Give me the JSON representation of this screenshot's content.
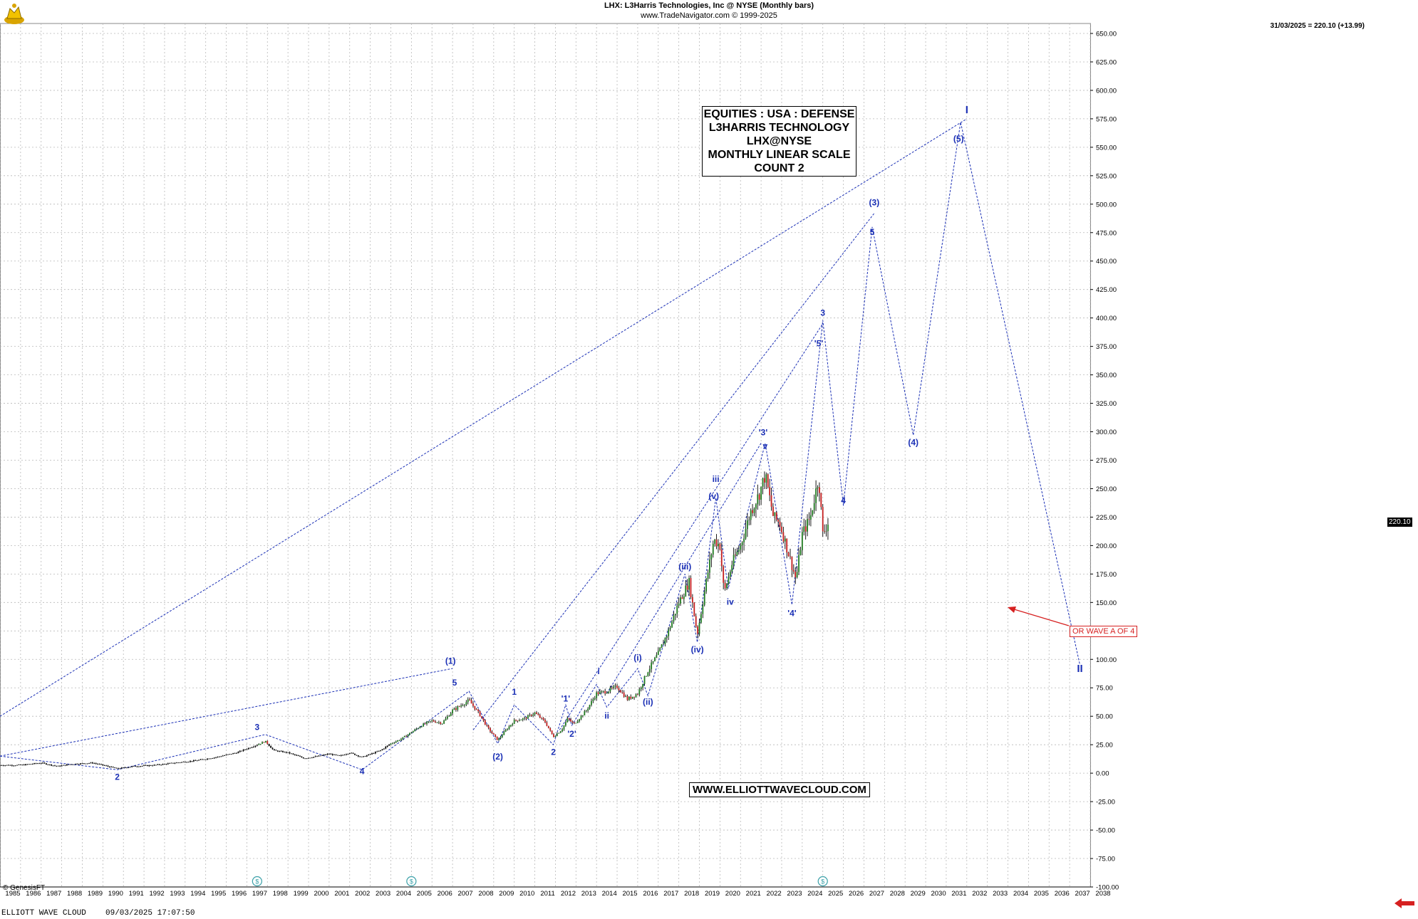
{
  "header": {
    "title": "LHX:  L3Harris Technologies, Inc @ NYSE  (Monthly bars)",
    "subtitle": "www.TradeNavigator.com © 1999-2025",
    "last_price": "31/03/2025 = 220.10 (+13.99)",
    "price_tag": "220.10"
  },
  "infobox": {
    "lines": [
      "EQUITIES : USA : DEFENSE",
      "L3HARRIS TECHNOLOGY",
      "LHX@NYSE",
      "MONTHLY LINEAR SCALE",
      "COUNT 2"
    ]
  },
  "website": "WWW.ELLIOTTWAVECLOUD.COM",
  "alt_note": "OR WAVE A OF 4",
  "copyright": "© GenesisFT",
  "footer": {
    "brand": "ELLIOTT WAVE CLOUD",
    "timestamp": "09/03/2025 17:07:50"
  },
  "icons": {
    "logo": "bull-logo-icon",
    "scroll": "scroll-right-arrow-icon",
    "split_markers": "split-marker-icon"
  },
  "colors": {
    "wave": "#1a2fb5",
    "price": "#000000",
    "up_candle": "#1f7a1f",
    "down_candle": "#c41e1e",
    "alert": "#d62020",
    "grid": "#b8b8b8"
  },
  "chart_data": {
    "type": "line",
    "title": "LHX:  L3Harris Technologies, Inc @ NYSE  (Monthly bars)",
    "xlabel": "",
    "ylabel": "",
    "x_range": [
      1985.0,
      2038.0
    ],
    "ylim": [
      -100,
      650
    ],
    "y_ticks": [
      -100,
      -75,
      -50,
      -25,
      0,
      25,
      50,
      75,
      100,
      125,
      150,
      175,
      200,
      225,
      250,
      275,
      300,
      325,
      350,
      375,
      400,
      425,
      450,
      475,
      500,
      525,
      550,
      575,
      600,
      625,
      650
    ],
    "x_ticks": [
      1985,
      1986,
      1987,
      1988,
      1989,
      1990,
      1991,
      1992,
      1993,
      1994,
      1995,
      1996,
      1997,
      1998,
      1999,
      2000,
      2001,
      2002,
      2003,
      2004,
      2005,
      2006,
      2007,
      2008,
      2009,
      2010,
      2011,
      2012,
      2013,
      2014,
      2015,
      2016,
      2017,
      2018,
      2019,
      2020,
      2021,
      2022,
      2023,
      2024,
      2025,
      2026,
      2027,
      2028,
      2029,
      2030,
      2031,
      2032,
      2033,
      2034,
      2035,
      2036,
      2037,
      2038
    ],
    "grid": true,
    "split_markers_x": [
      1997.5,
      2005.0,
      2025.0
    ],
    "price_series": {
      "name": "LHX",
      "points": [
        [
          1985.0,
          7
        ],
        [
          1986.0,
          7
        ],
        [
          1987.0,
          9
        ],
        [
          1987.8,
          6
        ],
        [
          1988.5,
          8
        ],
        [
          1989.5,
          9
        ],
        [
          1990.0,
          7
        ],
        [
          1990.7,
          4
        ],
        [
          1991.5,
          6
        ],
        [
          1992.5,
          7
        ],
        [
          1993.5,
          9
        ],
        [
          1994.5,
          11
        ],
        [
          1995.5,
          14
        ],
        [
          1996.5,
          18
        ],
        [
          1997.5,
          25
        ],
        [
          1997.9,
          28
        ],
        [
          1998.3,
          20
        ],
        [
          1999.0,
          18
        ],
        [
          1999.8,
          13
        ],
        [
          2000.5,
          15
        ],
        [
          2001.0,
          17
        ],
        [
          2001.5,
          15
        ],
        [
          2002.0,
          18
        ],
        [
          2002.6,
          14
        ],
        [
          2003.5,
          20
        ],
        [
          2004.0,
          26
        ],
        [
          2004.5,
          30
        ],
        [
          2005.0,
          36
        ],
        [
          2005.5,
          42
        ],
        [
          2006.0,
          46
        ],
        [
          2006.5,
          44
        ],
        [
          2007.0,
          55
        ],
        [
          2007.8,
          64
        ],
        [
          2008.3,
          52
        ],
        [
          2008.7,
          40
        ],
        [
          2009.2,
          29
        ],
        [
          2009.6,
          38
        ],
        [
          2010.0,
          46
        ],
        [
          2010.5,
          48
        ],
        [
          2011.0,
          53
        ],
        [
          2011.5,
          45
        ],
        [
          2011.9,
          32
        ],
        [
          2012.3,
          38
        ],
        [
          2012.6,
          48
        ],
        [
          2012.9,
          43
        ],
        [
          2013.5,
          55
        ],
        [
          2014.0,
          70
        ],
        [
          2014.5,
          72
        ],
        [
          2015.0,
          76
        ],
        [
          2015.5,
          65
        ],
        [
          2016.0,
          70
        ],
        [
          2016.5,
          90
        ],
        [
          2017.0,
          105
        ],
        [
          2017.5,
          125
        ],
        [
          2018.0,
          150
        ],
        [
          2018.5,
          168
        ],
        [
          2018.9,
          122
        ],
        [
          2019.3,
          165
        ],
        [
          2019.7,
          205
        ],
        [
          2020.0,
          200
        ],
        [
          2020.2,
          158
        ],
        [
          2020.6,
          185
        ],
        [
          2021.0,
          200
        ],
        [
          2021.5,
          230
        ],
        [
          2021.9,
          245
        ],
        [
          2022.2,
          262
        ],
        [
          2022.6,
          225
        ],
        [
          2022.9,
          220
        ],
        [
          2023.3,
          195
        ],
        [
          2023.7,
          170
        ],
        [
          2024.0,
          210
        ],
        [
          2024.4,
          225
        ],
        [
          2024.8,
          260
        ],
        [
          2025.0,
          210
        ],
        [
          2025.25,
          220
        ]
      ]
    },
    "wave_paths": [
      {
        "name": "primary-channel",
        "points": [
          [
            1985.0,
            50
          ],
          [
            2032.0,
            575
          ]
        ]
      },
      {
        "name": "intermediate-1-channel",
        "points": [
          [
            1985.0,
            15
          ],
          [
            2007.0,
            92
          ]
        ]
      },
      {
        "name": "wave-3-upper-channel",
        "points": [
          [
            2008.0,
            38
          ],
          [
            2027.5,
            492
          ]
        ]
      },
      {
        "name": "wave-5-channel",
        "points": [
          [
            2012.2,
            38
          ],
          [
            2025.0,
            395
          ]
        ]
      },
      {
        "name": "minor-channel",
        "points": [
          [
            2014.5,
            70
          ],
          [
            2022.0,
            290
          ]
        ]
      },
      {
        "name": "primary-wave-count",
        "points": [
          [
            1985.0,
            15
          ],
          [
            1990.7,
            3
          ],
          [
            1997.9,
            34
          ],
          [
            2002.6,
            3
          ],
          [
            2007.8,
            72
          ],
          [
            2009.2,
            26
          ],
          [
            2010.0,
            60
          ],
          [
            2011.9,
            25
          ],
          [
            2012.5,
            60
          ],
          [
            2012.8,
            42
          ],
          [
            2014.0,
            78
          ],
          [
            2014.5,
            58
          ],
          [
            2016.0,
            92
          ],
          [
            2016.5,
            68
          ],
          [
            2018.3,
            175
          ],
          [
            2018.9,
            115
          ],
          [
            2019.8,
            242
          ],
          [
            2020.4,
            162
          ],
          [
            2022.2,
            290
          ],
          [
            2023.5,
            148
          ],
          [
            2025.0,
            398
          ],
          [
            2026.0,
            235
          ],
          [
            2027.4,
            480
          ],
          [
            2029.4,
            297
          ],
          [
            2031.7,
            572
          ],
          [
            2037.5,
            95
          ]
        ]
      }
    ],
    "annotations": [
      {
        "text": "(1)",
        "x": 2006.9,
        "y": 96
      },
      {
        "text": "5",
        "x": 2007.1,
        "y": 77
      },
      {
        "text": "3",
        "x": 1997.5,
        "y": 38
      },
      {
        "text": "2",
        "x": 1990.7,
        "y": -6
      },
      {
        "text": "4",
        "x": 2002.6,
        "y": -1
      },
      {
        "text": "(2)",
        "x": 2009.2,
        "y": 12
      },
      {
        "text": "1",
        "x": 2010.0,
        "y": 69
      },
      {
        "text": "2",
        "x": 2011.9,
        "y": 16
      },
      {
        "text": "'1'",
        "x": 2012.5,
        "y": 63
      },
      {
        "text": "'2'",
        "x": 2012.8,
        "y": 32
      },
      {
        "text": "i",
        "x": 2014.1,
        "y": 87
      },
      {
        "text": "ii",
        "x": 2014.5,
        "y": 48
      },
      {
        "text": "(i)",
        "x": 2016.0,
        "y": 99
      },
      {
        "text": "(ii)",
        "x": 2016.5,
        "y": 60
      },
      {
        "text": "(iii)",
        "x": 2018.3,
        "y": 179
      },
      {
        "text": "(iv)",
        "x": 2018.9,
        "y": 106
      },
      {
        "text": "iii",
        "x": 2019.8,
        "y": 256
      },
      {
        "text": "(v)",
        "x": 2019.7,
        "y": 241
      },
      {
        "text": "iv",
        "x": 2020.5,
        "y": 148
      },
      {
        "text": "'3'",
        "x": 2022.1,
        "y": 297
      },
      {
        "text": "v",
        "x": 2022.2,
        "y": 285
      },
      {
        "text": "'4'",
        "x": 2023.5,
        "y": 138
      },
      {
        "text": "'5'",
        "x": 2024.8,
        "y": 375
      },
      {
        "text": "3",
        "x": 2025.0,
        "y": 402
      },
      {
        "text": "4",
        "x": 2026.0,
        "y": 237
      },
      {
        "text": "5",
        "x": 2027.4,
        "y": 473
      },
      {
        "text": "(3)",
        "x": 2027.5,
        "y": 499
      },
      {
        "text": "(4)",
        "x": 2029.4,
        "y": 288
      },
      {
        "text": "(5)",
        "x": 2031.6,
        "y": 555
      },
      {
        "text": "I",
        "x": 2032.0,
        "y": 580
      },
      {
        "text": "II",
        "x": 2037.5,
        "y": 89
      }
    ]
  }
}
